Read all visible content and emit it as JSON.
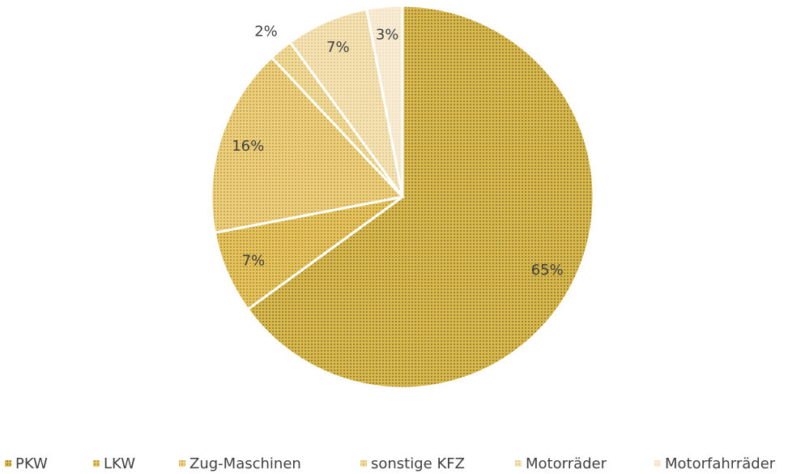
{
  "chart_data": {
    "type": "pie",
    "categories": [
      "PKW",
      "LKW",
      "Zug-Maschinen",
      "sonstige KFZ",
      "Motorräder",
      "Motorfahrräder"
    ],
    "values": [
      65,
      7,
      16,
      2,
      7,
      3
    ],
    "value_labels": [
      "65%",
      "7%",
      "16%",
      "2%",
      "7%",
      "3%"
    ],
    "colors": [
      "#d9b94c",
      "#e6c45a",
      "#efd078",
      "#f3da92",
      "#f6e2b0",
      "#f9ecd2"
    ],
    "legend": "bottom"
  }
}
